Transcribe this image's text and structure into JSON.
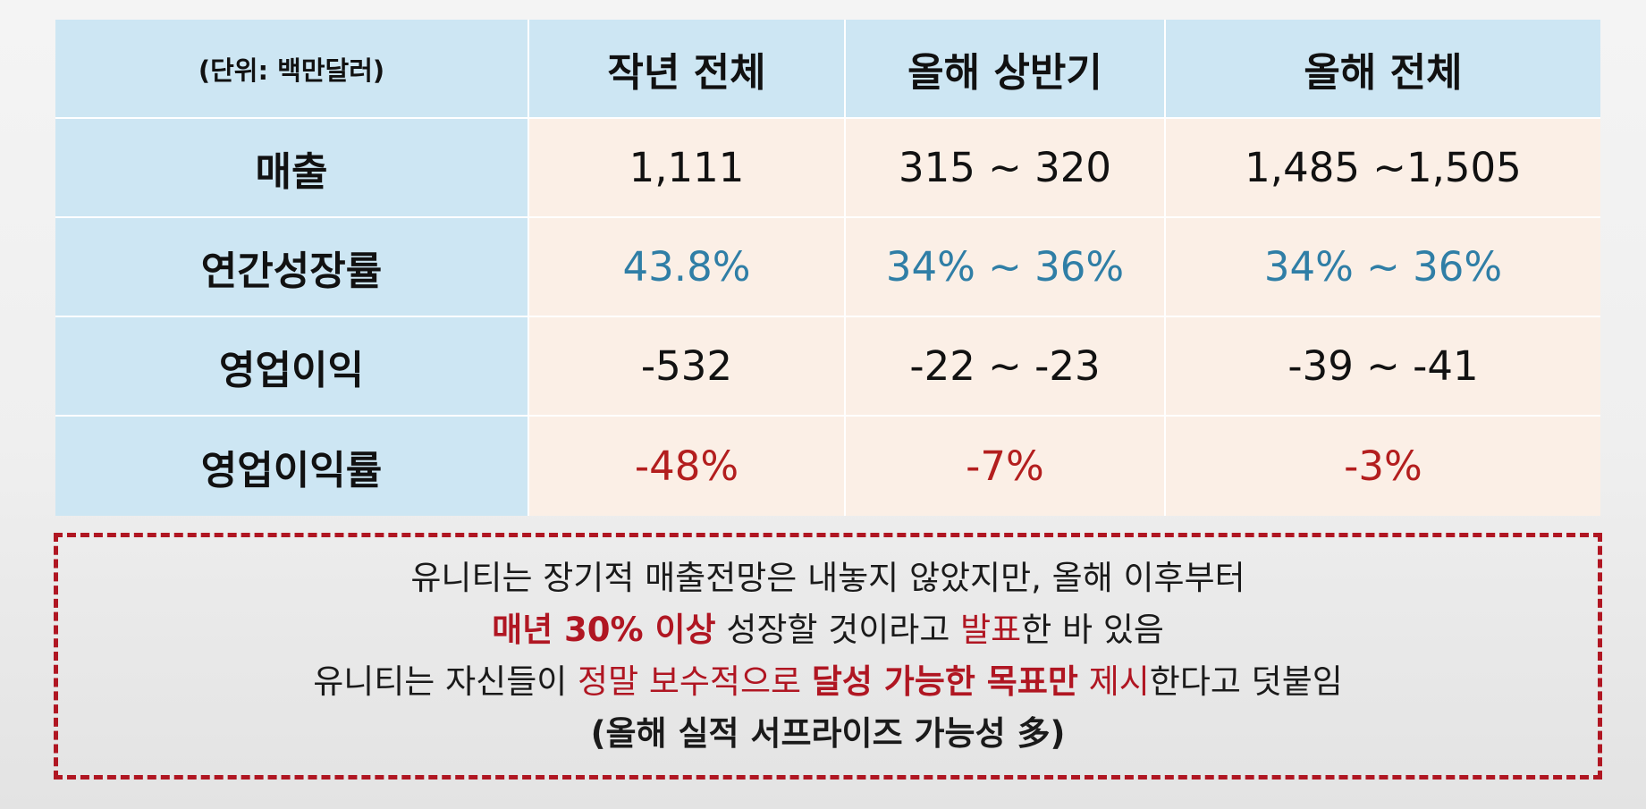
{
  "table": {
    "header": {
      "unit": "(단위: 백만달러)",
      "col1": "작년 전체",
      "col2": "올해 상반기",
      "col3": "올해 전체"
    },
    "rows": [
      {
        "label": "매출",
        "values": [
          "1,111",
          "315 ~ 320",
          "1,485 ~1,505"
        ],
        "color": "#111111"
      },
      {
        "label": "연간성장률",
        "values": [
          "43.8%",
          "34% ~ 36%",
          "34% ~ 36%"
        ],
        "color": "#2f7ea6"
      },
      {
        "label": "영업이익",
        "values": [
          "-532",
          "-22 ~ -23",
          "-39 ~ -41"
        ],
        "color": "#111111"
      },
      {
        "label": "영업이익률",
        "values": [
          "-48%",
          "-7%",
          "-3%"
        ],
        "color": "#b31e1e"
      }
    ]
  },
  "note": {
    "line1": "유니티는 장기적 매출전망은 내놓지 않았지만, 올해 이후부터",
    "line2": {
      "part1": "매년 30% 이상",
      "part2": " 성장할 것이라고 ",
      "part3": "발표",
      "part4": "한 바 있음"
    },
    "line3": {
      "part1": "유니티는 자신들이 ",
      "part2": "정말 보수적으로 ",
      "part3": "달성 가능한 목표만",
      "part4": " 제시",
      "part5": "한다고 덧붙임"
    },
    "line4": "(올해 실적 서프라이즈 가능성 多)"
  },
  "colors": {
    "header_bg": "#cde6f3",
    "data_bg": "#fbefe6",
    "accent_red": "#b01622",
    "accent_blue": "#2f7ea6"
  }
}
